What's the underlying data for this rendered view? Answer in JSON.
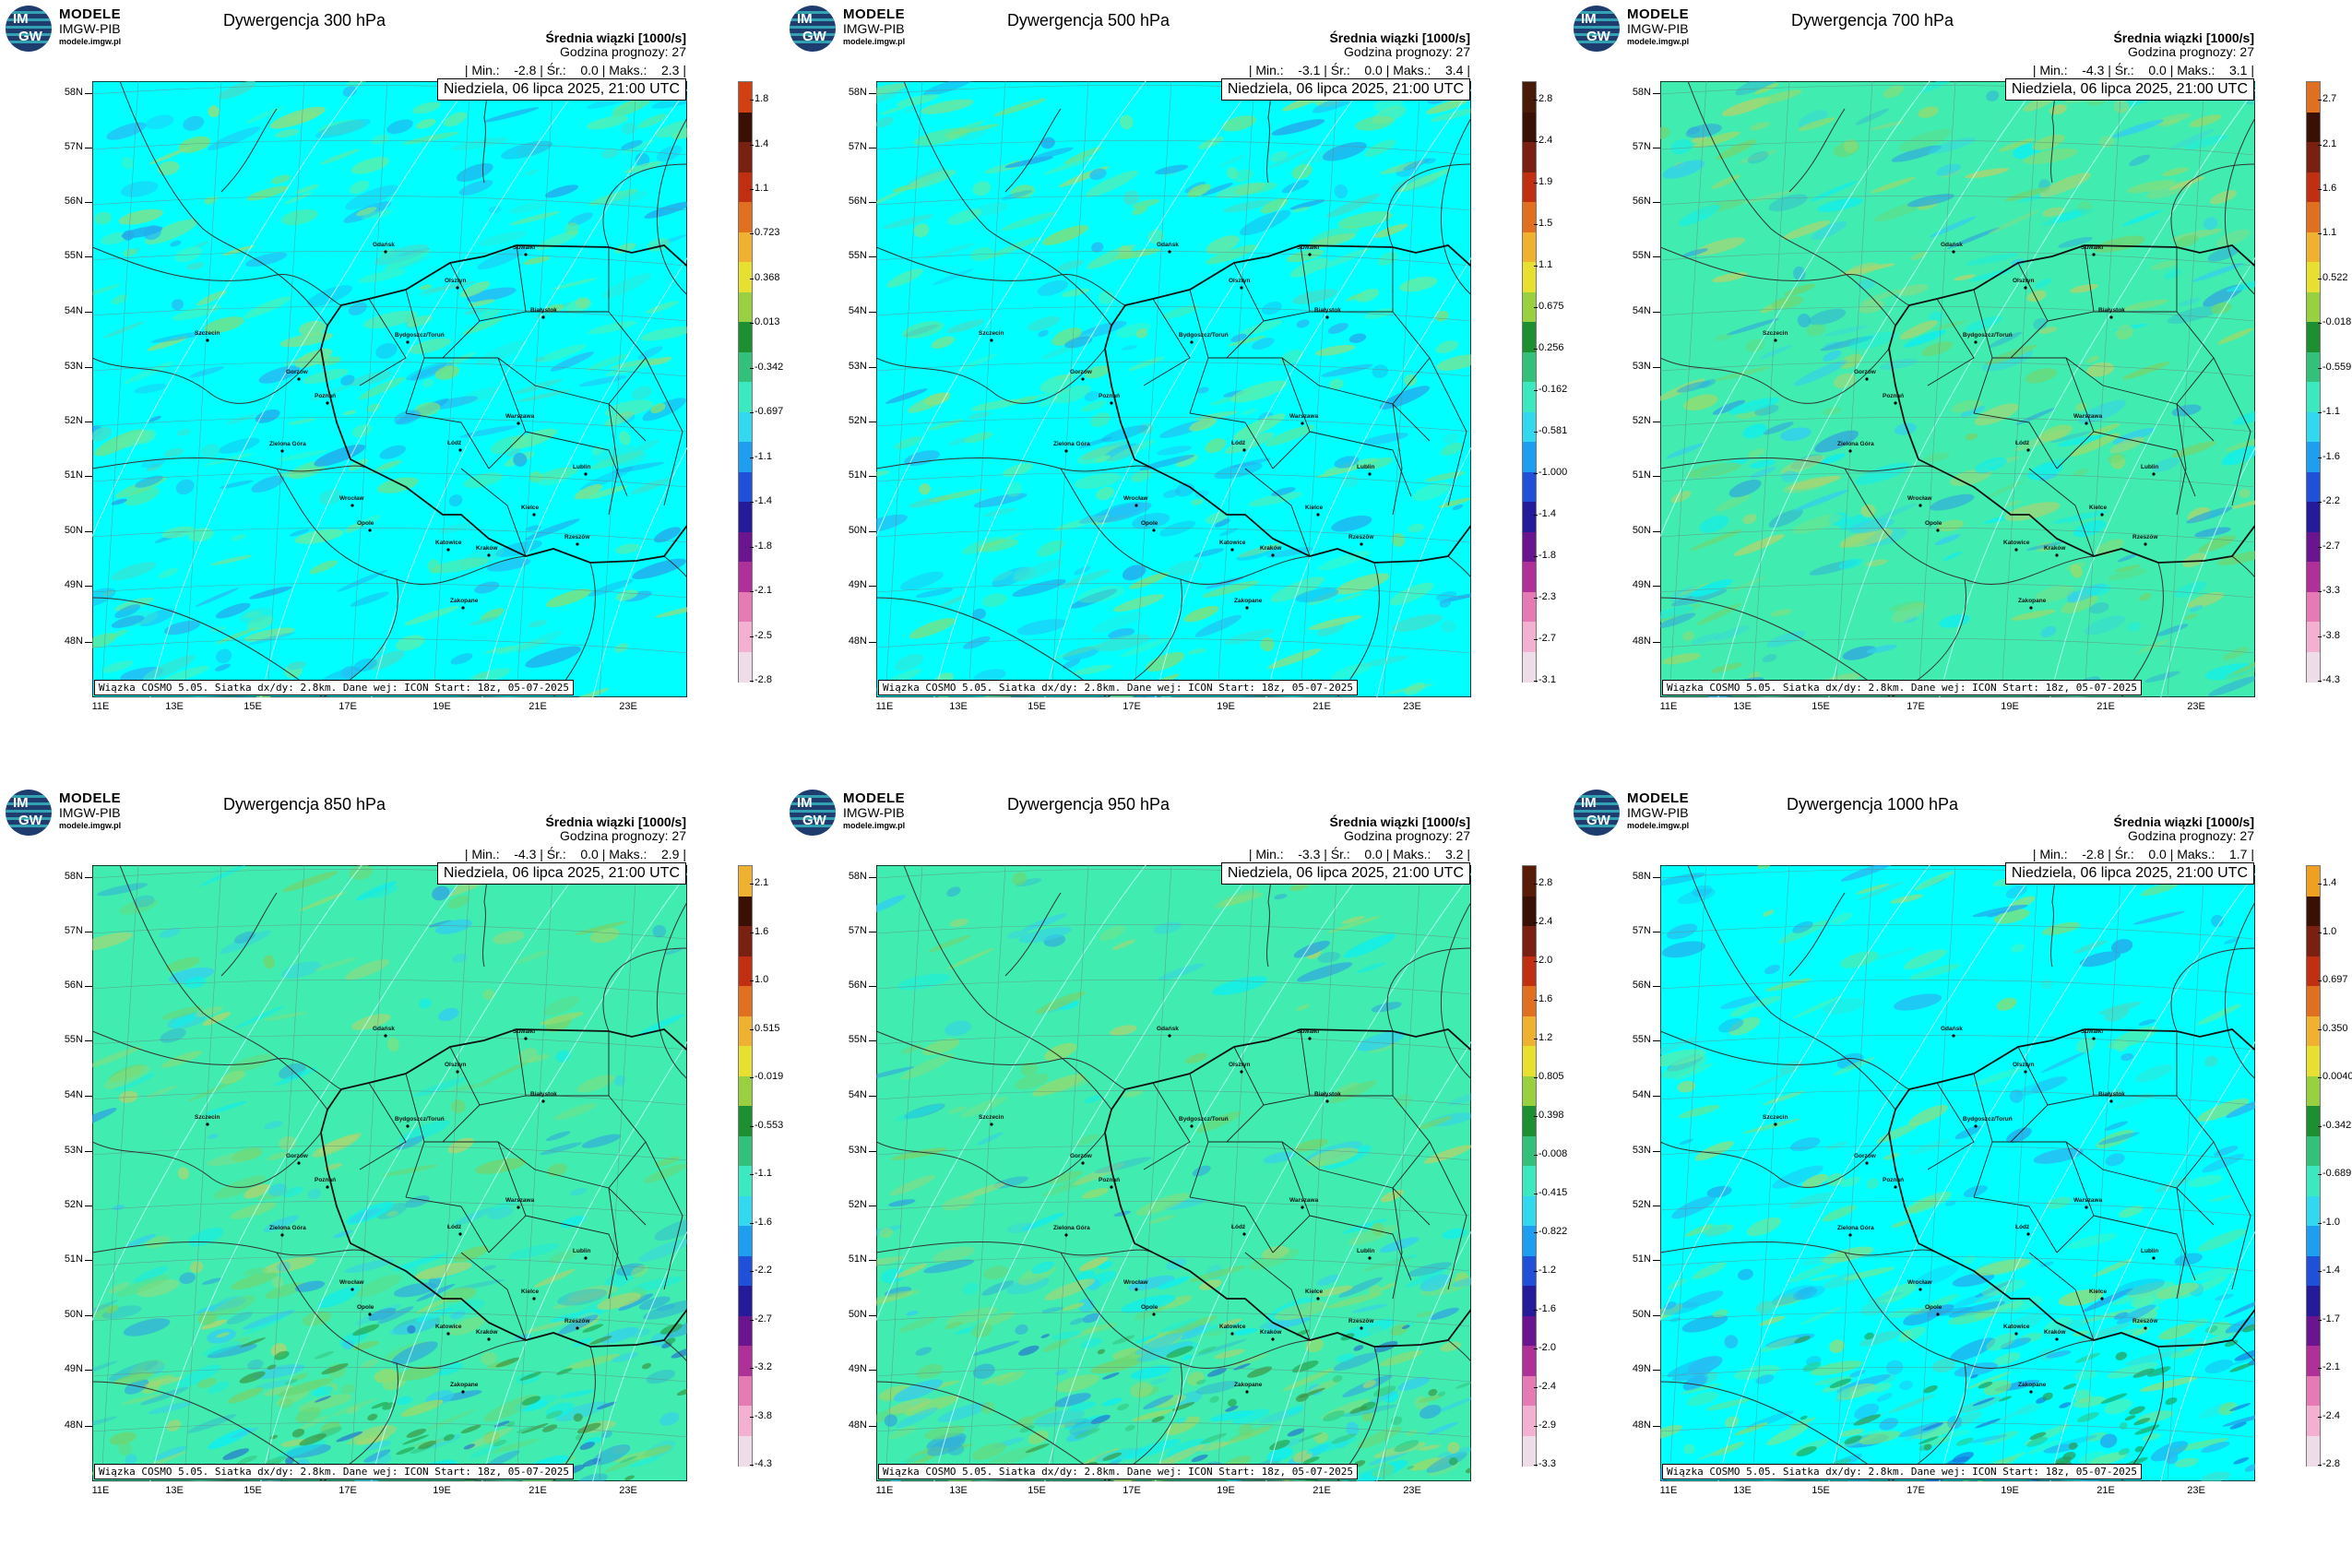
{
  "logo": {
    "brand_line1": "MODELE",
    "brand_line2": "IMGW-PIB",
    "url": "modele.imgw.pl",
    "badge_top": "IM",
    "badge_bottom": "GW"
  },
  "common": {
    "info_line1": "Średnia wiązki [1000/s]",
    "info_line2": "Godzina prognozy: 27",
    "date": "Niedziela, 06 lipca 2025, 21:00 UTC",
    "credits": "Wiązka COSMO 5.05. Siatka dx/dy: 2.8km. Dane wej: ICON Start: 18z, 05-07-2025",
    "lat_labels": [
      "58N",
      "57N",
      "56N",
      "55N",
      "54N",
      "53N",
      "52N",
      "51N",
      "50N",
      "49N",
      "48N"
    ],
    "lon_labels": [
      "11E",
      "13E",
      "15E",
      "17E",
      "19E",
      "21E",
      "23E"
    ]
  },
  "colors": {
    "cyan_bg": "#00ffff",
    "green_bg": "#40ecb0",
    "border": "#222222",
    "isoline": "#c8ffff"
  },
  "panels": [
    {
      "title": "Dywergencja 300 hPa",
      "stats": "| Min.:    -2.8 | Śr.:    0.0 | Maks.:    2.3 |",
      "background": "cyan",
      "colorbar_ticks": [
        "1.8",
        "1.4",
        "1.1",
        "0.723",
        "0.368",
        "0.013",
        "-0.342",
        "-0.697",
        "-1.1",
        "-1.4",
        "-1.8",
        "-2.1",
        "-2.5",
        "-2.8"
      ]
    },
    {
      "title": "Dywergencja 500 hPa",
      "stats": "| Min.:    -3.1 | Śr.:    0.0 | Maks.:    3.4 |",
      "background": "cyan",
      "colorbar_ticks": [
        "2.8",
        "2.4",
        "1.9",
        "1.5",
        "1.1",
        "0.675",
        "0.256",
        "-0.162",
        "-0.581",
        "-1.000",
        "-1.4",
        "-1.8",
        "-2.3",
        "-2.7",
        "-3.1"
      ]
    },
    {
      "title": "Dywergencja 700 hPa",
      "stats": "| Min.:    -4.3 | Śr.:    0.0 | Maks.:    3.1 |",
      "background": "green",
      "colorbar_ticks": [
        "2.7",
        "2.1",
        "1.6",
        "1.1",
        "0.522",
        "-0.018",
        "-0.559",
        "-1.1",
        "-1.6",
        "-2.2",
        "-2.7",
        "-3.3",
        "-3.8",
        "-4.3"
      ]
    },
    {
      "title": "Dywergencja 850 hPa",
      "stats": "| Min.:    -4.3 | Śr.:    0.0 | Maks.:    2.9 |",
      "background": "green",
      "colorbar_ticks": [
        "2.1",
        "1.6",
        "1.0",
        "0.515",
        "-0.019",
        "-0.553",
        "-1.1",
        "-1.6",
        "-2.2",
        "-2.7",
        "-3.2",
        "-3.8",
        "-4.3"
      ]
    },
    {
      "title": "Dywergencja 950 hPa",
      "stats": "| Min.:    -3.3 | Śr.:    0.0 | Maks.:    3.2 |",
      "background": "green",
      "colorbar_ticks": [
        "2.8",
        "2.4",
        "2.0",
        "1.6",
        "1.2",
        "0.805",
        "0.398",
        "-0.008",
        "-0.415",
        "-0.822",
        "-1.2",
        "-1.6",
        "-2.0",
        "-2.4",
        "-2.9",
        "-3.3"
      ]
    },
    {
      "title": "Dywergencja 1000 hPa",
      "stats": "| Min.:    -2.8 | Śr.:    0.0 | Maks.:    1.7 |",
      "background": "cyan",
      "colorbar_ticks": [
        "1.4",
        "1.0",
        "0.697",
        "0.350",
        "0.0040",
        "-0.342",
        "-0.689",
        "-1.0",
        "-1.4",
        "-1.7",
        "-2.1",
        "-2.4",
        "-2.8"
      ]
    }
  ],
  "cities": [
    {
      "name": "Gdańsk"
    },
    {
      "name": "Olsztyn"
    },
    {
      "name": "Suwałki"
    },
    {
      "name": "Białystok"
    },
    {
      "name": "Szczecin"
    },
    {
      "name": "Bydgoszcz/Toruń"
    },
    {
      "name": "Gorzów"
    },
    {
      "name": "Poznań"
    },
    {
      "name": "Warszawa"
    },
    {
      "name": "Zielona Góra"
    },
    {
      "name": "Łódź"
    },
    {
      "name": "Lublin"
    },
    {
      "name": "Wrocław"
    },
    {
      "name": "Kielce"
    },
    {
      "name": "Opole"
    },
    {
      "name": "Rzeszów"
    },
    {
      "name": "Katowice"
    },
    {
      "name": "Kraków"
    },
    {
      "name": "Zakopane"
    }
  ]
}
